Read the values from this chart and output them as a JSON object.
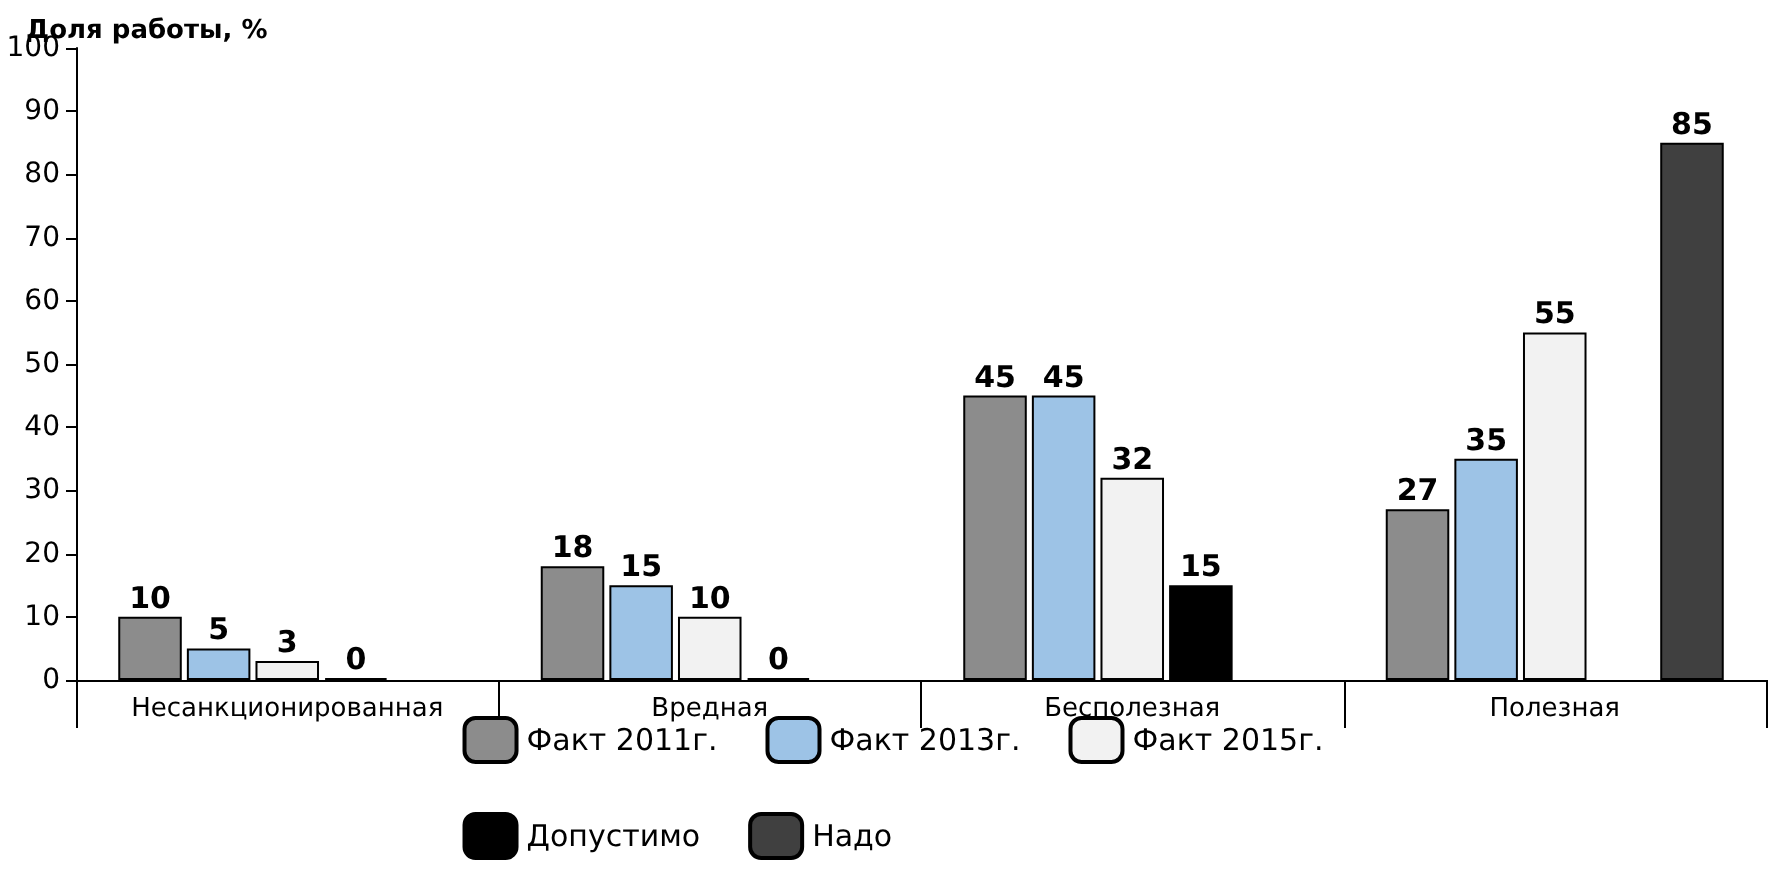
{
  "chart_data": {
    "type": "bar",
    "ylabel": "Доля работы, %",
    "categories": [
      "Несанкционированная",
      "Вредная",
      "Бесполезная",
      "Полезная"
    ],
    "series": [
      {
        "name": "Факт 2011г.",
        "color": "#8c8c8c",
        "values": [
          10,
          18,
          45,
          27
        ]
      },
      {
        "name": "Факт 2013г.",
        "color": "#9dc3e6",
        "values": [
          5,
          15,
          45,
          35
        ]
      },
      {
        "name": "Факт 2015г.",
        "color": "#f2f2f2",
        "values": [
          3,
          10,
          32,
          55
        ]
      },
      {
        "name": "Допустимо",
        "color": "#000000",
        "values": [
          0,
          0,
          15,
          null
        ]
      },
      {
        "name": "Надо",
        "color": "#404040",
        "values": [
          null,
          null,
          null,
          85
        ]
      }
    ],
    "ylim": [
      0,
      100
    ],
    "yticks": [
      0,
      10,
      20,
      30,
      40,
      50,
      60,
      70,
      80,
      90,
      100
    ],
    "grid": false,
    "legend": "bottom",
    "data_labels": true
  }
}
